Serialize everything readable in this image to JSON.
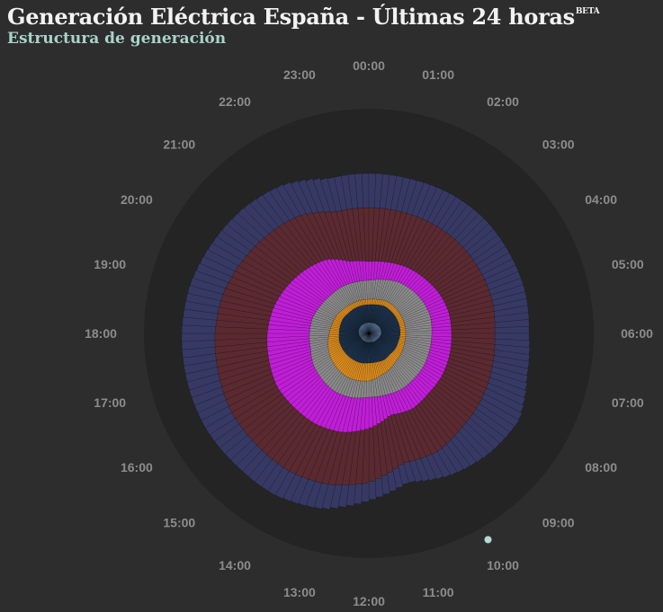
{
  "header": {
    "title": "Generación Eléctrica España - Últimas 24 horas",
    "badge": "BETA",
    "subtitle": "Estructura de generación"
  },
  "colors": {
    "background": "#2d2d2d",
    "disc": "#242424",
    "hour_label": "#8c8c8c",
    "indicator": "#b6d8d6"
  },
  "chart_data": {
    "type": "radial-stacked-bar",
    "title": "Estructura de generación",
    "hour_labels": [
      "00:00",
      "01:00",
      "02:00",
      "03:00",
      "04:00",
      "05:00",
      "06:00",
      "07:00",
      "08:00",
      "09:00",
      "10:00",
      "11:00",
      "12:00",
      "13:00",
      "14:00",
      "15:00",
      "16:00",
      "17:00",
      "18:00",
      "19:00",
      "20:00",
      "21:00",
      "22:00",
      "23:00"
    ],
    "angular_start_hour": 10.5,
    "current_time_hour": 10.0,
    "series": [
      {
        "color": "#7a9fd0",
        "values": [
          12,
          12,
          13,
          13,
          14,
          14,
          14,
          13,
          12,
          11,
          11,
          10,
          10,
          10,
          10,
          10,
          10,
          11,
          11,
          12,
          12,
          12,
          12,
          12
        ]
      },
      {
        "color": "#1f3550",
        "values": [
          20,
          21,
          22,
          22,
          21,
          21,
          21,
          21,
          22,
          22,
          23,
          23,
          23,
          24,
          24,
          24,
          24,
          23,
          22,
          21,
          21,
          20,
          20,
          20
        ]
      },
      {
        "color": "#e08f1e",
        "values": [
          6,
          6,
          6,
          6,
          6,
          6,
          6,
          7,
          8,
          10,
          12,
          16,
          20,
          20,
          20,
          18,
          16,
          13,
          11,
          9,
          8,
          7,
          6,
          6
        ]
      },
      {
        "color": "#8a8a8a",
        "values": [
          21,
          23,
          25,
          27,
          29,
          30,
          29,
          29,
          29,
          28,
          26,
          22,
          18,
          20,
          21,
          21,
          21,
          20,
          22,
          23,
          21,
          21,
          22,
          21
        ]
      },
      {
        "color": "#bf1ed6",
        "values": [
          21,
          20,
          19,
          19,
          20,
          21,
          22,
          23,
          23,
          23,
          25,
          23,
          35,
          40,
          42,
          44,
          47,
          48,
          47,
          45,
          43,
          40,
          35,
          24
        ]
      },
      {
        "color": "#5a2a30",
        "values": [
          60,
          58,
          56,
          55,
          52,
          50,
          48,
          49,
          51,
          53,
          55,
          55,
          60,
          60,
          60,
          59,
          58,
          58,
          58,
          58,
          57,
          57,
          57,
          57
        ]
      },
      {
        "color": "#363963",
        "values": [
          38,
          38,
          39,
          39,
          38,
          38,
          38,
          40,
          48,
          42,
          30,
          22,
          20,
          28,
          31,
          32,
          34,
          36,
          37,
          38,
          39,
          40,
          39,
          38
        ]
      }
    ],
    "rlim": [
      0,
      250
    ],
    "grid": false,
    "legend": "none"
  }
}
